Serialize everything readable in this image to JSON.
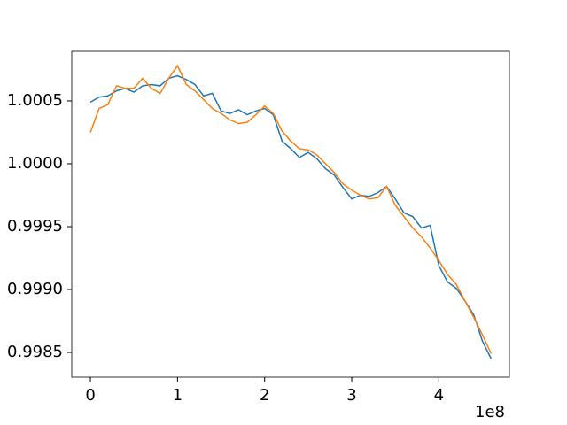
{
  "chart_data": {
    "type": "line",
    "x": [
      0,
      10000000,
      20000000,
      30000000,
      40000000,
      50000000,
      60000000,
      70000000,
      80000000,
      90000000,
      100000000,
      110000000,
      120000000,
      130000000,
      140000000,
      150000000,
      160000000,
      170000000,
      180000000,
      190000000,
      200000000,
      210000000,
      220000000,
      230000000,
      240000000,
      250000000,
      260000000,
      270000000,
      280000000,
      290000000,
      300000000,
      310000000,
      320000000,
      330000000,
      340000000,
      350000000,
      360000000,
      370000000,
      380000000,
      390000000,
      400000000,
      410000000,
      420000000,
      430000000,
      440000000,
      450000000,
      460000000
    ],
    "series": [
      {
        "color": "#1f77b4",
        "values": [
          1.00049,
          1.00053,
          1.00054,
          1.00058,
          1.0006,
          1.00057,
          1.00062,
          1.00063,
          1.00062,
          1.00068,
          1.0007,
          1.00067,
          1.00063,
          1.00054,
          1.00056,
          1.00042,
          1.0004,
          1.00043,
          1.00039,
          1.00042,
          1.00044,
          1.00039,
          1.00018,
          1.00012,
          1.00005,
          1.00009,
          1.00004,
          0.99996,
          0.99991,
          0.99981,
          0.99972,
          0.99975,
          0.99974,
          0.99977,
          0.99982,
          0.99972,
          0.99961,
          0.99958,
          0.99949,
          0.99951,
          0.99919,
          0.99906,
          0.99901,
          0.99891,
          0.9988,
          0.99859,
          0.99845
        ]
      },
      {
        "color": "#ff7f0e",
        "values": [
          1.00025,
          1.00044,
          1.00047,
          1.00062,
          1.0006,
          1.0006,
          1.00068,
          1.0006,
          1.00056,
          1.00068,
          1.00078,
          1.00063,
          1.00058,
          1.00051,
          1.00044,
          1.0004,
          1.00035,
          1.00032,
          1.00033,
          1.00039,
          1.00046,
          1.0004,
          1.00026,
          1.00018,
          1.00012,
          1.00011,
          1.00007,
          1.0,
          0.99993,
          0.99984,
          0.99979,
          0.99975,
          0.99972,
          0.99973,
          0.99982,
          0.99967,
          0.99958,
          0.99949,
          0.99942,
          0.99933,
          0.99923,
          0.99912,
          0.99904,
          0.99891,
          0.99878,
          0.99864,
          0.99849
        ]
      }
    ],
    "xlim": [
      -21400000,
      481000000
    ],
    "xticks": [
      0,
      {
        "value": 100000000,
        "label": "1"
      },
      {
        "value": 200000000,
        "label": "2"
      },
      {
        "value": 300000000,
        "label": "3"
      },
      {
        "value": 400000000,
        "label": "4"
      }
    ],
    "x_offset_label": "1e8",
    "ylim": [
      0.998303,
      1.000894
    ],
    "yticks": [
      {
        "value": 0.9985,
        "label": "0.9985"
      },
      {
        "value": 0.999,
        "label": "0.9990"
      },
      {
        "value": 0.9995,
        "label": "0.9995"
      },
      {
        "value": 1.0,
        "label": "1.0000"
      },
      {
        "value": 1.0005,
        "label": "1.0005"
      }
    ],
    "grid": false
  }
}
